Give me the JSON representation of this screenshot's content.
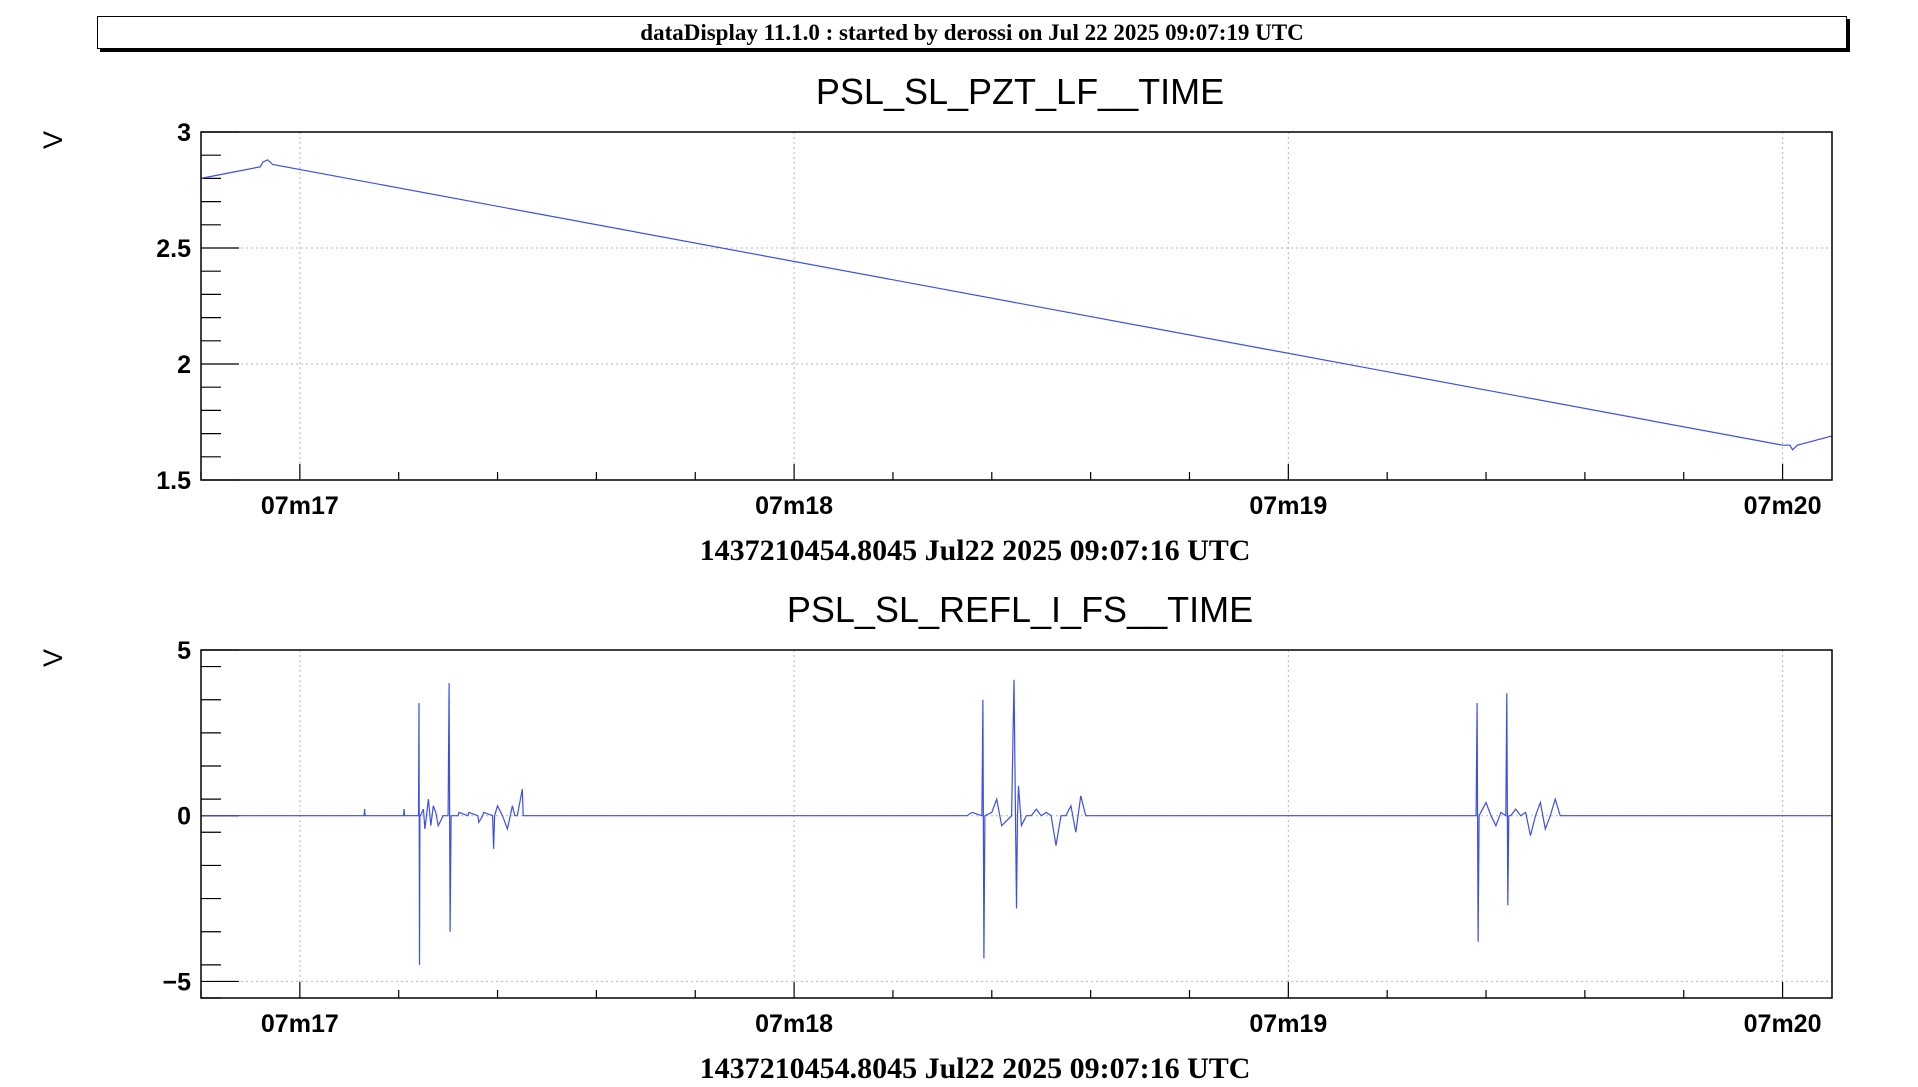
{
  "header": {
    "text": "dataDisplay 11.1.0 : started by derossi on Jul 22 2025 09:07:19 UTC"
  },
  "chart_data": [
    {
      "type": "line",
      "title": "PSL_SL_PZT_LF__TIME",
      "ylabel": "V",
      "xlabel": "1437210454.8045 Jul22 2025 09:07:16 UTC",
      "x_unit": "seconds after 09:07:16 UTC",
      "xlim": [
        0.8,
        4.1
      ],
      "ylim": [
        1.5,
        3.0
      ],
      "grid": true,
      "x_ticks": [
        {
          "value": 1,
          "label": "07m17"
        },
        {
          "value": 2,
          "label": "07m18"
        },
        {
          "value": 3,
          "label": "07m19"
        },
        {
          "value": 4,
          "label": "07m20"
        }
      ],
      "y_ticks": [
        {
          "value": 1.5,
          "label": "1.5"
        },
        {
          "value": 2,
          "label": "2"
        },
        {
          "value": 2.5,
          "label": "2.5"
        },
        {
          "value": 3,
          "label": "3"
        }
      ],
      "series": [
        {
          "color": "#3c4fe6",
          "x": [
            0.8,
            0.92,
            0.925,
            0.935,
            0.945,
            4.0,
            4.015,
            4.02,
            4.03,
            4.1
          ],
          "y": [
            2.8,
            2.85,
            2.87,
            2.88,
            2.86,
            1.65,
            1.65,
            1.63,
            1.65,
            1.69
          ]
        }
      ]
    },
    {
      "type": "line",
      "title": "PSL_SL_REFL_I_FS__TIME",
      "ylabel": "V",
      "xlabel": "1437210454.8045 Jul22 2025 09:07:16 UTC",
      "x_unit": "seconds after 09:07:16 UTC",
      "xlim": [
        0.8,
        4.1
      ],
      "ylim": [
        -5.5,
        5.0
      ],
      "grid": true,
      "x_ticks": [
        {
          "value": 1,
          "label": "07m17"
        },
        {
          "value": 2,
          "label": "07m18"
        },
        {
          "value": 3,
          "label": "07m19"
        },
        {
          "value": 4,
          "label": "07m20"
        }
      ],
      "y_ticks": [
        {
          "value": -5,
          "label": "−5"
        },
        {
          "value": 0,
          "label": "0"
        },
        {
          "value": 5,
          "label": "5"
        }
      ],
      "series": [
        {
          "color": "#3c4fe6",
          "x": [
            0.8,
            1.13,
            1.131,
            1.132,
            1.21,
            1.211,
            1.212,
            1.24,
            1.241,
            1.242,
            1.243,
            1.244,
            1.25,
            1.253,
            1.26,
            1.265,
            1.27,
            1.275,
            1.28,
            1.29,
            1.3,
            1.302,
            1.304,
            1.306,
            1.32,
            1.322,
            1.34,
            1.342,
            1.36,
            1.362,
            1.37,
            1.372,
            1.39,
            1.392,
            1.394,
            1.4,
            1.41,
            1.42,
            1.43,
            1.435,
            1.44,
            1.45,
            1.452,
            1.46,
            1.465,
            1.48,
            1.5,
            2.2,
            2.3,
            2.35,
            2.36,
            2.38,
            2.382,
            2.384,
            2.386,
            2.4,
            2.41,
            2.42,
            2.44,
            2.445,
            2.45,
            2.452,
            2.454,
            2.46,
            2.47,
            2.48,
            2.49,
            2.5,
            2.51,
            2.52,
            2.53,
            2.54,
            2.55,
            2.56,
            2.57,
            2.58,
            2.59,
            2.6,
            2.61,
            2.62,
            2.7,
            3.3,
            3.35,
            3.37,
            3.38,
            3.382,
            3.384,
            3.386,
            3.4,
            3.41,
            3.42,
            3.43,
            3.44,
            3.442,
            3.444,
            3.446,
            3.45,
            3.46,
            3.47,
            3.48,
            3.49,
            3.5,
            3.51,
            3.52,
            3.53,
            3.54,
            3.55,
            3.56,
            3.57,
            3.58,
            3.6,
            4.1
          ],
          "y": [
            0,
            0,
            0.2,
            0,
            0,
            0.2,
            0,
            0,
            3.4,
            -4.5,
            0,
            0,
            0.2,
            -0.4,
            0.5,
            -0.3,
            0.3,
            0.1,
            -0.3,
            0,
            0,
            4.0,
            -3.5,
            0,
            0,
            0.1,
            0,
            0.1,
            0,
            -0.2,
            0,
            0.1,
            0,
            -1.0,
            0,
            0.3,
            0,
            -0.4,
            0.3,
            0,
            0,
            0.8,
            0,
            0,
            0,
            0,
            0,
            0,
            0,
            0,
            0.1,
            0,
            3.5,
            -4.3,
            0,
            0.1,
            0.5,
            -0.3,
            0,
            4.1,
            -2.8,
            0,
            0.9,
            -0.3,
            0,
            0,
            0.2,
            0,
            0.1,
            0,
            -0.9,
            0,
            0,
            0.3,
            -0.5,
            0.6,
            0,
            0,
            0,
            0,
            0,
            0,
            0,
            0,
            0,
            3.4,
            -3.8,
            0,
            0.4,
            0,
            -0.3,
            0.1,
            0,
            3.7,
            -2.7,
            0,
            0,
            0.2,
            0,
            0.1,
            -0.6,
            0,
            0.4,
            -0.4,
            0,
            0.5,
            0,
            0,
            0,
            0,
            0,
            0
          ]
        }
      ]
    }
  ]
}
